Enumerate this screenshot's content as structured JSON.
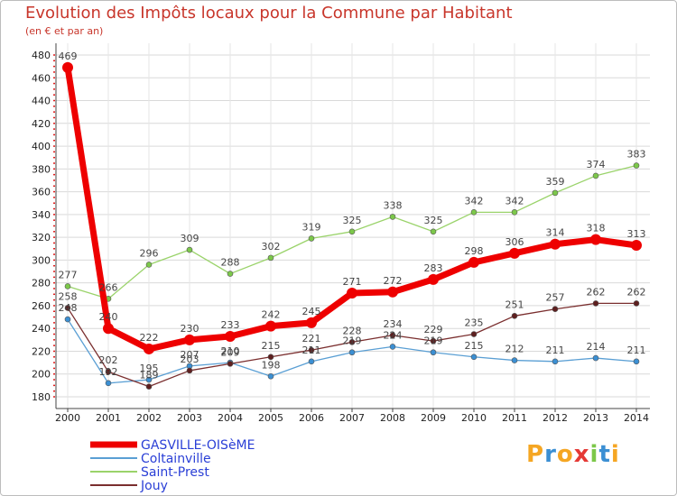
{
  "chart_data": {
    "type": "line",
    "title": "Evolution des Impôts locaux pour la Commune par Habitant",
    "subtitle": "(en € et par an)",
    "xlabel": "",
    "ylabel": "",
    "ylim": [
      180,
      480
    ],
    "y_ticks": [
      180,
      200,
      220,
      240,
      260,
      280,
      300,
      320,
      340,
      360,
      380,
      400,
      420,
      440,
      460,
      480
    ],
    "categories": [
      "2000",
      "2001",
      "2002",
      "2003",
      "2004",
      "2005",
      "2006",
      "2007",
      "2008",
      "2009",
      "2010",
      "2011",
      "2012",
      "2013",
      "2014"
    ],
    "series": [
      {
        "name": "GASVILLE-OISèME",
        "color": "#ee0000",
        "dot": "#ee0000",
        "bold": true,
        "values": [
          469,
          240,
          222,
          230,
          233,
          242,
          245,
          271,
          272,
          283,
          298,
          306,
          314,
          318,
          313
        ]
      },
      {
        "name": "Coltainville",
        "color": "#5a9fd4",
        "dot": "#3b8fd3",
        "values": [
          248,
          192,
          195,
          207,
          210,
          198,
          211,
          219,
          224,
          219,
          215,
          212,
          211,
          214,
          211
        ]
      },
      {
        "name": "Saint-Prest",
        "color": "#9ad36a",
        "dot": "#7cc84a",
        "values": [
          277,
          266,
          296,
          309,
          288,
          302,
          319,
          325,
          338,
          325,
          342,
          342,
          359,
          374,
          383
        ]
      },
      {
        "name": "Jouy",
        "color": "#7a2e2e",
        "dot": "#5e1f1f",
        "values": [
          258,
          202,
          189,
          203,
          209,
          215,
          221,
          228,
          234,
          229,
          235,
          251,
          257,
          262,
          262
        ]
      }
    ],
    "legend_position": "bottom-left"
  },
  "legend_text_color": "#2a3fd6",
  "logo": {
    "letters": [
      "P",
      "r",
      "o",
      "x",
      "i",
      "t",
      "i"
    ],
    "colors": [
      "#f5a623",
      "#3b8fd3",
      "#f5a623",
      "#e53935",
      "#7cc84a",
      "#3b8fd3",
      "#f5a623"
    ]
  }
}
